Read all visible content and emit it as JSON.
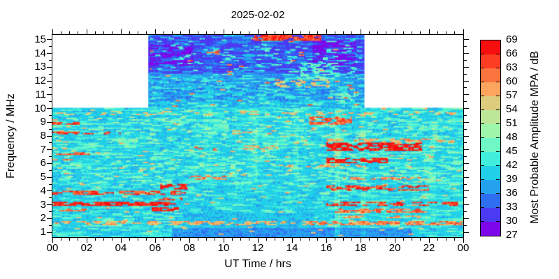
{
  "title": "2025-02-02",
  "axes": {
    "x_label": "UT Time / hrs",
    "y_label": "Frequency / MHz",
    "x_tick_labels": [
      "00",
      "02",
      "04",
      "06",
      "08",
      "10",
      "12",
      "14",
      "16",
      "18",
      "20",
      "22",
      "00"
    ],
    "x_tick_hours": [
      0,
      2,
      4,
      6,
      8,
      10,
      12,
      14,
      16,
      18,
      20,
      22,
      24
    ],
    "x_minor_step_hours": 0.5,
    "y_tick_labels": [
      "15",
      "14",
      "13",
      "12",
      "11",
      "10",
      "9",
      "8",
      "7",
      "6",
      "5",
      "4",
      "3",
      "2",
      "1"
    ],
    "y_tick_mhz": [
      15,
      14,
      13,
      12,
      11,
      10,
      9,
      8,
      7,
      6,
      5,
      4,
      3,
      2,
      1
    ],
    "y_minor_step_mhz": 0.5,
    "x_range_hours": [
      0,
      24
    ],
    "y_range_mhz": [
      0.65,
      15.35
    ]
  },
  "colorbar": {
    "label": "Most Probable Amplitude MPA / dB",
    "min_db": 27,
    "max_db": 69,
    "step_db": 3,
    "tick_labels": [
      "69",
      "66",
      "63",
      "60",
      "57",
      "54",
      "51",
      "48",
      "45",
      "42",
      "39",
      "36",
      "33",
      "30",
      "27"
    ],
    "segment_colors_low_to_high": [
      "#7E06EA",
      "#4A3BF2",
      "#2E6FF2",
      "#25A2EE",
      "#22CFE8",
      "#41EDDB",
      "#6FF7C5",
      "#9DF6AC",
      "#BEE698",
      "#DCCC7C",
      "#FDA55F",
      "#FC7440",
      "#FB3D23",
      "#F70E0E"
    ]
  },
  "chart_data": {
    "type": "heatmap",
    "title": "2025-02-02",
    "xlabel": "UT Time / hrs",
    "ylabel": "Frequency / MHz",
    "zlabel": "Most Probable Amplitude MPA / dB",
    "x_range": [
      0,
      24
    ],
    "y_range": [
      1,
      15
    ],
    "z_range": [
      27,
      69
    ],
    "seed": 42,
    "bins": {
      "dt_hours": 0.1,
      "df_mhz": 0.1
    },
    "coverage": {
      "low_band": {
        "freq_mhz": [
          1,
          10
        ],
        "time_hours": [
          0,
          24
        ]
      },
      "high_band": {
        "freq_mhz": [
          10,
          15
        ],
        "time_hours": [
          5.6,
          18.2
        ]
      },
      "mask_above_mhz": 10.05,
      "no_data_color": "#ffffff"
    },
    "base_levels": [
      {
        "f": [
          0.65,
          10.05
        ],
        "db": 40.5
      },
      {
        "f": [
          10.05,
          10.6
        ],
        "db": 39.5
      },
      {
        "f": [
          10.6,
          12.6
        ],
        "db": 37
      },
      {
        "f": [
          12.6,
          15.35
        ],
        "db": 32.5
      }
    ],
    "base_patches": [
      {
        "f": [
          13.2,
          14.7
        ],
        "t": [
          5.6,
          8.2
        ],
        "db": 29.5,
        "calm": false
      },
      {
        "f": [
          13.2,
          15.05
        ],
        "t": [
          15.2,
          17.7
        ],
        "db": 29.5,
        "calm": false
      },
      {
        "f": [
          0.65,
          1.35
        ],
        "t": [
          7,
          21
        ],
        "db": 37,
        "calm": true
      },
      {
        "f": [
          1.35,
          2.45
        ],
        "t": [
          7.6,
          15.3
        ],
        "db": 40,
        "calm": true
      }
    ],
    "noise": {
      "dash_len_hours": 0.6,
      "amp_db": 8.5
    },
    "vertical_stripes": [
      {
        "t": [
          15.8,
          18.4
        ],
        "f": [
          0.65,
          10.05
        ],
        "amp": 6,
        "period": 0.3
      },
      {
        "t": [
          8.8,
          15.6
        ],
        "f": [
          4.5,
          10.05
        ],
        "amp": 3.5,
        "period": 0.3
      },
      {
        "t": [
          18.4,
          23.9
        ],
        "f": [
          1.5,
          8
        ],
        "amp": 2.5,
        "period": 0.35
      }
    ],
    "features": [
      {
        "f": [
          15.0,
          15.35
        ],
        "t": [
          11.8,
          15.7
        ],
        "db": 66,
        "density": 0.75
      },
      {
        "f": [
          14.1,
          14.45
        ],
        "t": [
          9.0,
          10.3
        ],
        "db": 63,
        "density": 0.3
      },
      {
        "f": [
          11.55,
          12.15
        ],
        "t": [
          13.0,
          16.2
        ],
        "db": 57,
        "density": 0.4
      },
      {
        "f": [
          12.2,
          13.4
        ],
        "t": [
          14.5,
          16.8
        ],
        "db": 47,
        "density": 0.45
      },
      {
        "f": [
          10.4,
          11.2
        ],
        "t": [
          16.2,
          17.7
        ],
        "db": 47,
        "density": 0.5
      },
      {
        "f": [
          10.2,
          15.2
        ],
        "t": [
          5.7,
          18.1
        ],
        "db": 62,
        "density": 0.018
      },
      {
        "f": [
          10.2,
          15.2
        ],
        "t": [
          5.7,
          18.1
        ],
        "db": 45,
        "density": 0.1
      },
      {
        "f": [
          9.6,
          9.9
        ],
        "t": [
          0,
          24
        ],
        "db": 57,
        "density": 0.28
      },
      {
        "f": [
          8.9,
          9.1
        ],
        "t": [
          0,
          1.6
        ],
        "db": 66,
        "density": 0.65
      },
      {
        "f": [
          8.9,
          9.45
        ],
        "t": [
          15,
          17.5
        ],
        "db": 64,
        "density": 0.5
      },
      {
        "f": [
          8.15,
          8.4
        ],
        "t": [
          0,
          4
        ],
        "db": 66,
        "density": 0.55
      },
      {
        "f": [
          8.2,
          8.45
        ],
        "t": [
          10.5,
          13.5
        ],
        "db": 59,
        "density": 0.4
      },
      {
        "f": [
          7.6,
          7.9
        ],
        "t": [
          16,
          23.5
        ],
        "db": 60,
        "density": 0.45
      },
      {
        "f": [
          6.95,
          7.55
        ],
        "t": [
          16,
          21.6
        ],
        "db": 69,
        "density": 0.8
      },
      {
        "f": [
          7.0,
          7.3
        ],
        "t": [
          8.3,
          9.6
        ],
        "db": 63,
        "density": 0.5
      },
      {
        "f": [
          7.1,
          7.4
        ],
        "t": [
          11,
          13.2
        ],
        "db": 60,
        "density": 0.4
      },
      {
        "f": [
          6.7,
          6.9
        ],
        "t": [
          0.2,
          2.2
        ],
        "db": 65,
        "density": 0.55
      },
      {
        "f": [
          6.1,
          6.45
        ],
        "t": [
          16,
          19.6
        ],
        "db": 68,
        "density": 0.7
      },
      {
        "f": [
          6.15,
          6.35
        ],
        "t": [
          0,
          1.2
        ],
        "db": 63,
        "density": 0.5
      },
      {
        "f": [
          5.75,
          6.0
        ],
        "t": [
          13,
          18
        ],
        "db": 59,
        "density": 0.4
      },
      {
        "f": [
          4.85,
          5.15
        ],
        "t": [
          8,
          10.2
        ],
        "db": 62,
        "density": 0.5
      },
      {
        "f": [
          4.85,
          5.1
        ],
        "t": [
          17,
          21.5
        ],
        "db": 62,
        "density": 0.5
      },
      {
        "f": [
          4.15,
          4.6
        ],
        "t": [
          6.3,
          7.9
        ],
        "db": 69,
        "density": 0.85
      },
      {
        "f": [
          4.05,
          4.5
        ],
        "t": [
          16,
          22
        ],
        "db": 66,
        "density": 0.6
      },
      {
        "f": [
          3.8,
          4.05
        ],
        "t": [
          0,
          7.8
        ],
        "db": 65,
        "density": 0.55
      },
      {
        "f": [
          3.35,
          3.55
        ],
        "t": [
          6.2,
          7.6
        ],
        "db": 66,
        "density": 0.6
      },
      {
        "f": [
          2.95,
          3.25
        ],
        "t": [
          0,
          7.2
        ],
        "db": 68,
        "density": 0.75
      },
      {
        "f": [
          2.95,
          3.2
        ],
        "t": [
          16,
          23.7
        ],
        "db": 66,
        "density": 0.6
      },
      {
        "f": [
          2.55,
          2.8
        ],
        "t": [
          0,
          2
        ],
        "db": 63,
        "density": 0.5
      },
      {
        "f": [
          2.55,
          2.85
        ],
        "t": [
          5.8,
          7.4
        ],
        "db": 68,
        "density": 0.7
      },
      {
        "f": [
          2.5,
          2.8
        ],
        "t": [
          16.5,
          22
        ],
        "db": 63,
        "density": 0.5
      },
      {
        "f": [
          2.05,
          2.3
        ],
        "t": [
          17,
          21.5
        ],
        "db": 60,
        "density": 0.45
      },
      {
        "f": [
          1.6,
          1.85
        ],
        "t": [
          0,
          24
        ],
        "db": 59,
        "density": 0.45
      },
      {
        "f": [
          1.6,
          1.85
        ],
        "t": [
          15,
          24
        ],
        "db": 63,
        "density": 0.5
      },
      {
        "f": [
          0.65,
          10.05
        ],
        "t": [
          0,
          24
        ],
        "db": 58,
        "density": 0.02
      },
      {
        "f": [
          4.5,
          9.5
        ],
        "t": [
          0,
          24
        ],
        "db": 50,
        "density": 0.12
      }
    ]
  }
}
